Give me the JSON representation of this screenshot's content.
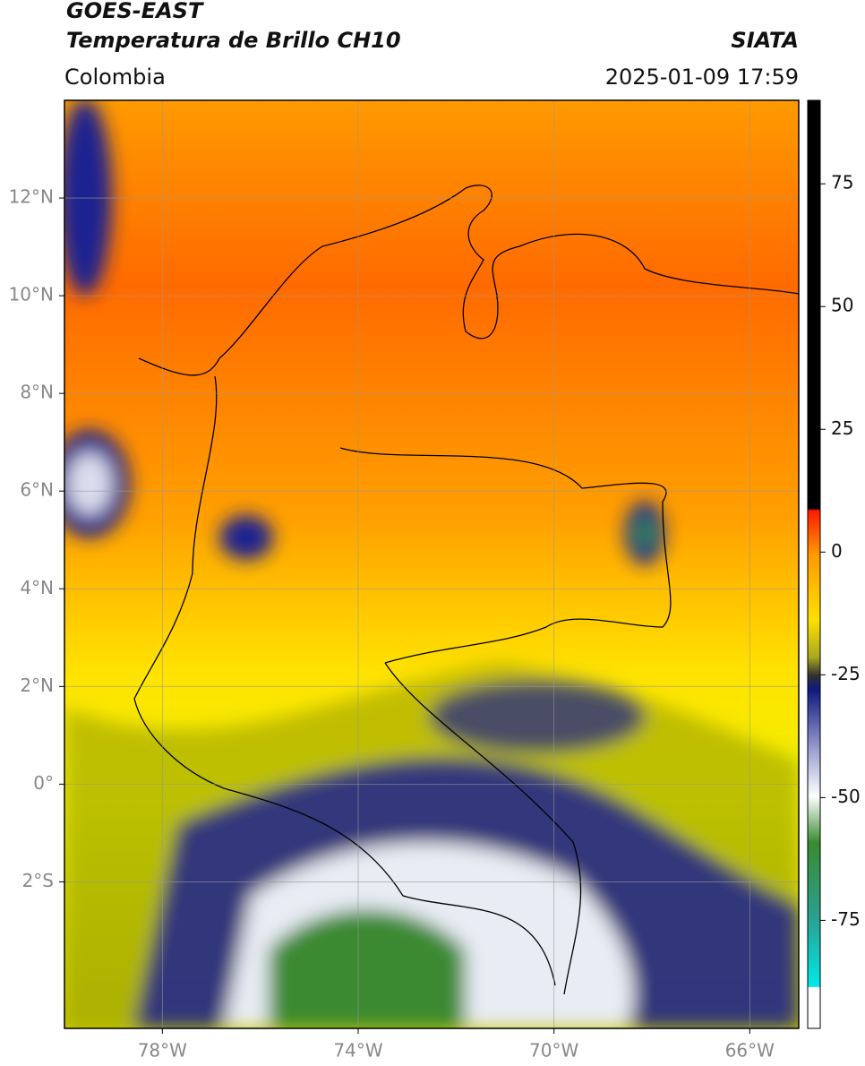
{
  "header": {
    "title": "GOES-EAST",
    "subtitle": "Temperatura de Brillo CH10",
    "source": "SIATA",
    "region": "Colombia",
    "datetime": "2025-01-09 17:59"
  },
  "map": {
    "lonlim": [
      -80,
      -65
    ],
    "latlim": [
      -5,
      14
    ],
    "grid": true,
    "lonticks": [
      {
        "value": -78,
        "label": "78°W"
      },
      {
        "value": -74,
        "label": "74°W"
      },
      {
        "value": -70,
        "label": "70°W"
      },
      {
        "value": -66,
        "label": "66°W"
      }
    ],
    "latticks": [
      {
        "value": 12,
        "label": "12°N"
      },
      {
        "value": 10,
        "label": "10°N"
      },
      {
        "value": 8,
        "label": "8°N"
      },
      {
        "value": 6,
        "label": "6°N"
      },
      {
        "value": 4,
        "label": "4°N"
      },
      {
        "value": 2,
        "label": "2°N"
      },
      {
        "value": 0,
        "label": "0°"
      },
      {
        "value": -2,
        "label": "2°S"
      }
    ]
  },
  "colorbar": {
    "lim": [
      -97,
      92
    ],
    "ticks": [
      75,
      50,
      25,
      0,
      -25,
      -50,
      -75
    ]
  }
}
